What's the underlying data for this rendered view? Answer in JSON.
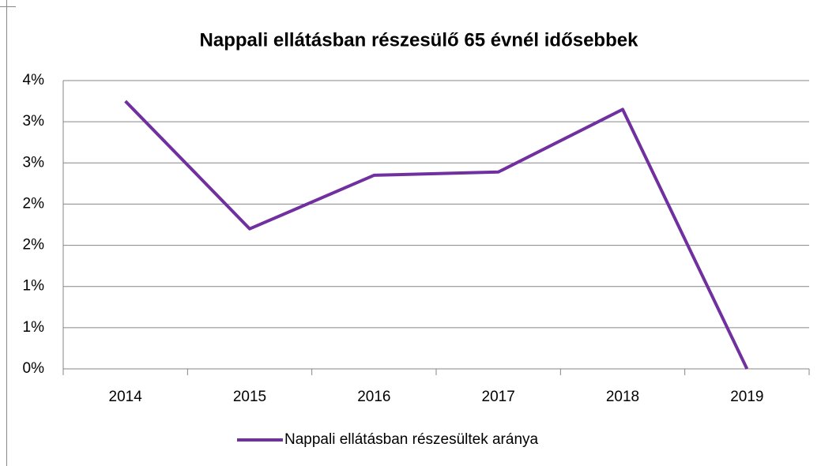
{
  "chart_data": {
    "type": "line",
    "title": "Nappali ellátásban részesülő 65 évnél idősebbek",
    "categories": [
      "2014",
      "2015",
      "2016",
      "2017",
      "2018",
      "2019"
    ],
    "series": [
      {
        "name": "Nappali ellátásban részesültek aránya",
        "color": "#7030a0",
        "values": [
          3.25,
          1.7,
          2.35,
          2.39,
          3.15,
          0
        ]
      }
    ],
    "ylim": [
      0,
      3.5
    ],
    "yticks": [
      {
        "value": 0,
        "label": "0%"
      },
      {
        "value": 0.5,
        "label": "1%"
      },
      {
        "value": 1,
        "label": "1%"
      },
      {
        "value": 1.5,
        "label": "2%"
      },
      {
        "value": 2,
        "label": "2%"
      },
      {
        "value": 2.5,
        "label": "3%"
      },
      {
        "value": 3,
        "label": "3%"
      },
      {
        "value": 3.5,
        "label": "4%"
      }
    ],
    "grid": true,
    "legend": "bottom"
  }
}
